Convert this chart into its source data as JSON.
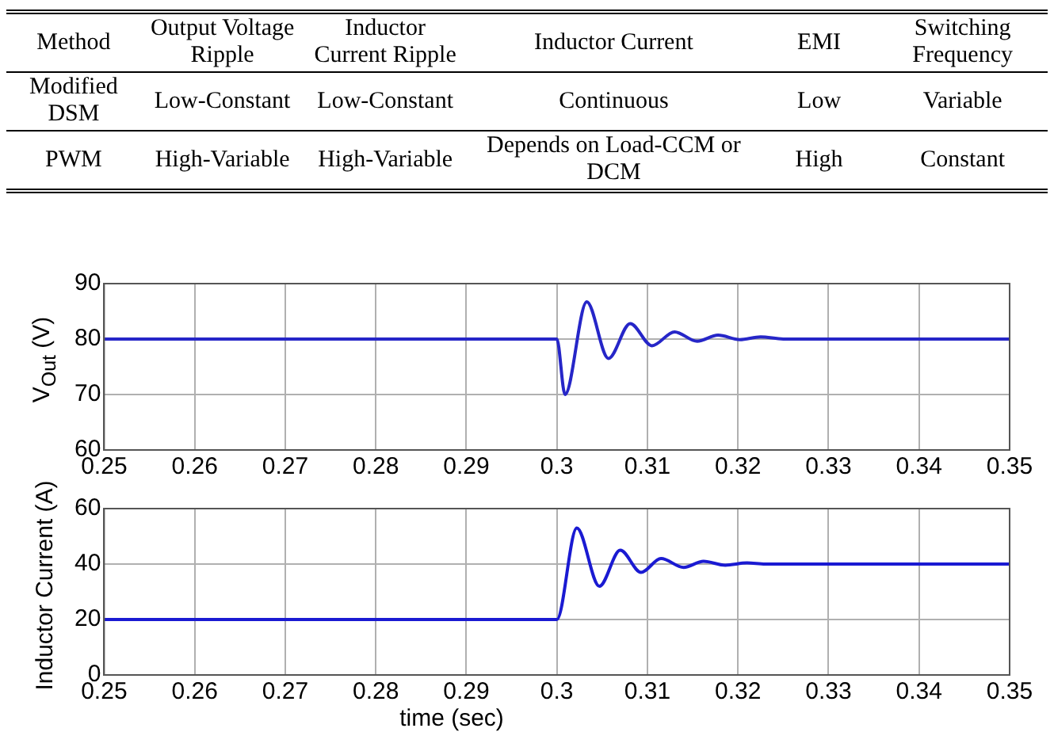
{
  "chart_data": [
    {
      "type": "other",
      "categories": [
        "Method",
        "Output Voltage Ripple",
        "Inductor Current Ripple",
        "Inductor Current",
        "EMI",
        "Switching Frequency"
      ],
      "cell_labels": [
        [
          "Modified DSM",
          "Low-Constant",
          "Low-Constant",
          "Continuous",
          "Low",
          "Variable"
        ],
        [
          "PWM",
          "High-Variable",
          "High-Variable",
          "Depends on Load-CCM or DCM",
          "High",
          "Constant"
        ]
      ]
    },
    {
      "type": "line",
      "ylabel": "V$_{Out}$ (V)",
      "series": [
        {
          "color": "#2626c8",
          "x": [
            0.25,
            0.3,
            0.3009,
            0.3033,
            0.3057,
            0.3081,
            0.3105,
            0.313,
            0.3155,
            0.3178,
            0.3202,
            0.3225,
            0.325,
            0.35
          ],
          "values": [
            80,
            80,
            70,
            86.7,
            76.5,
            82.8,
            78.8,
            81.3,
            79.6,
            80.7,
            79.9,
            80.4,
            80,
            80
          ]
        }
      ],
      "xlim": [
        0.25,
        0.35
      ],
      "xticks": [
        0.25,
        0.26,
        0.27,
        0.28,
        0.29,
        0.3,
        0.31,
        0.32,
        0.33,
        0.34,
        0.35
      ],
      "ylim": [
        60,
        90
      ],
      "yticks": [
        60,
        70,
        80,
        90
      ],
      "grid": true,
      "marker": "none",
      "line_style": "solid"
    },
    {
      "type": "line",
      "xlabel": "time (sec)",
      "ylabel": "Inductor Current (A)",
      "series": [
        {
          "color": "#1a1ad2",
          "x": [
            0.25,
            0.3,
            0.3022,
            0.3047,
            0.307,
            0.3093,
            0.3115,
            0.314,
            0.3162,
            0.3186,
            0.321,
            0.323,
            0.35
          ],
          "values": [
            20,
            20,
            53,
            32,
            45,
            37,
            42,
            38.8,
            41,
            39.6,
            40.4,
            40,
            40
          ]
        }
      ],
      "xlim": [
        0.25,
        0.35
      ],
      "xticks": [
        0.25,
        0.26,
        0.27,
        0.28,
        0.29,
        0.3,
        0.31,
        0.32,
        0.33,
        0.34,
        0.35
      ],
      "ylim": [
        0,
        60
      ],
      "yticks": [
        0,
        20,
        40,
        60
      ],
      "grid": true,
      "marker": "none",
      "line_style": "solid"
    }
  ]
}
